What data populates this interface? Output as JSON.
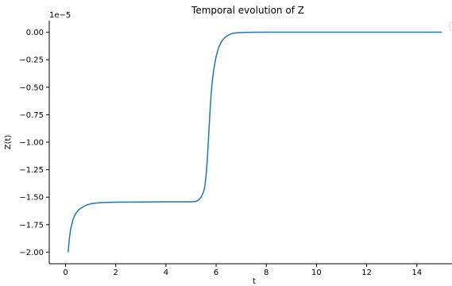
{
  "chart_data": {
    "type": "line",
    "title": "Temporal evolution of Z",
    "xlabel": "t",
    "ylabel": "Z(t)",
    "y_offset_label": "1e−5",
    "xlim": [
      -0.65,
      15.4
    ],
    "ylim": [
      -2.105,
      0.105
    ],
    "xticks": [
      0,
      2,
      4,
      6,
      8,
      10,
      12,
      14
    ],
    "xtick_labels": [
      "0",
      "2",
      "4",
      "6",
      "8",
      "10",
      "12",
      "14"
    ],
    "yticks": [
      0.0,
      -0.25,
      -0.5,
      -0.75,
      -1.0,
      -1.25,
      -1.5,
      -1.75,
      -2.0
    ],
    "ytick_labels": [
      "0.00",
      "−0.25",
      "−0.50",
      "−0.75",
      "−1.00",
      "−1.25",
      "−1.50",
      "−1.75",
      "−2.00"
    ],
    "grid": false,
    "legend": "top-right (empty)",
    "series": [
      {
        "color": "#1f77b4",
        "x": [
          0.1,
          0.15,
          0.2,
          0.3,
          0.4,
          0.5,
          0.6,
          0.8,
          1.0,
          1.2,
          1.5,
          2.0,
          3.0,
          4.0,
          5.0,
          5.2,
          5.3,
          5.4,
          5.5,
          5.55,
          5.6,
          5.65,
          5.7,
          5.75,
          5.8,
          5.85,
          5.9,
          5.95,
          6.0,
          6.1,
          6.2,
          6.3,
          6.4,
          6.5,
          6.6,
          6.7,
          6.8,
          7.0,
          7.2,
          7.5,
          8.0,
          9.0,
          10.0,
          12.0,
          14.0,
          15.0
        ],
        "y": [
          -2.0,
          -1.88,
          -1.79,
          -1.7,
          -1.65,
          -1.62,
          -1.6,
          -1.575,
          -1.56,
          -1.553,
          -1.548,
          -1.545,
          -1.543,
          -1.542,
          -1.542,
          -1.538,
          -1.525,
          -1.5,
          -1.45,
          -1.4,
          -1.3,
          -1.16,
          -0.95,
          -0.74,
          -0.57,
          -0.44,
          -0.35,
          -0.28,
          -0.22,
          -0.14,
          -0.09,
          -0.06,
          -0.04,
          -0.025,
          -0.015,
          -0.009,
          -0.006,
          -0.003,
          -0.0015,
          -0.0005,
          0.0,
          0.0,
          0.0,
          0.0,
          0.0,
          0.0
        ]
      }
    ]
  }
}
